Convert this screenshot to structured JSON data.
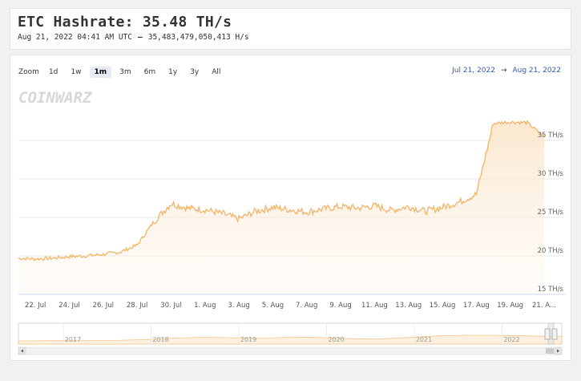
{
  "header": {
    "title": "ETC Hashrate: 35.48 TH/s",
    "timestamp": "Aug 21, 2022 04:41 AM UTC",
    "separator": "–",
    "raw_value": "35,483,479,050,413 H/s"
  },
  "toolbar": {
    "zoom_label": "Zoom",
    "ranges": [
      "1d",
      "1w",
      "1m",
      "3m",
      "6m",
      "1y",
      "3y",
      "All"
    ],
    "active_range": "1m",
    "date_from": "Jul 21, 2022",
    "date_arrow": "→",
    "date_to": "Aug 21, 2022"
  },
  "watermark": "COINWARZ",
  "colors": {
    "line": "#f2b468",
    "area_top": "#fbe3c5",
    "navigator_fill": "#fdf0de",
    "grid": "#e6e6e6",
    "accent_link": "#335cad"
  },
  "chart_data": {
    "type": "area",
    "x_unit": "date",
    "y_unit": "TH/s",
    "ylim": [
      15,
      40
    ],
    "yticks": [
      "15 TH/s",
      "20 TH/s",
      "25 TH/s",
      "30 TH/s",
      "35 TH/s"
    ],
    "xticks": [
      "22. Jul",
      "24. Jul",
      "26. Jul",
      "28. Jul",
      "30. Jul",
      "1. Aug",
      "3. Aug",
      "5. Aug",
      "7. Aug",
      "9. Aug",
      "11. Aug",
      "13. Aug",
      "15. Aug",
      "17. Aug",
      "19. Aug",
      "21. A..."
    ],
    "x": [
      "2022-07-21",
      "2022-07-22",
      "2022-07-23",
      "2022-07-24",
      "2022-07-25",
      "2022-07-26",
      "2022-07-27",
      "2022-07-28",
      "2022-07-29",
      "2022-07-30",
      "2022-07-31",
      "2022-08-01",
      "2022-08-02",
      "2022-08-03",
      "2022-08-04",
      "2022-08-05",
      "2022-08-06",
      "2022-08-07",
      "2022-08-08",
      "2022-08-09",
      "2022-08-10",
      "2022-08-11",
      "2022-08-12",
      "2022-08-13",
      "2022-08-14",
      "2022-08-15",
      "2022-08-16",
      "2022-08-17",
      "2022-08-18",
      "2022-08-19",
      "2022-08-20",
      "2022-08-21"
    ],
    "series": [
      {
        "values": [
          19.7,
          19.6,
          19.7,
          19.9,
          20.0,
          20.2,
          20.5,
          21.4,
          24.5,
          26.8,
          26.2,
          26.0,
          25.5,
          24.8,
          25.8,
          26.3,
          26.0,
          25.7,
          26.1,
          26.4,
          26.2,
          26.5,
          25.9,
          26.4,
          25.8,
          26.3,
          27.0,
          28.0,
          37.2,
          37.4,
          37.3,
          35.5
        ]
      }
    ],
    "navigator": {
      "xticks": [
        "2017",
        "2018",
        "2019",
        "2020",
        "2021",
        "2022"
      ]
    }
  }
}
